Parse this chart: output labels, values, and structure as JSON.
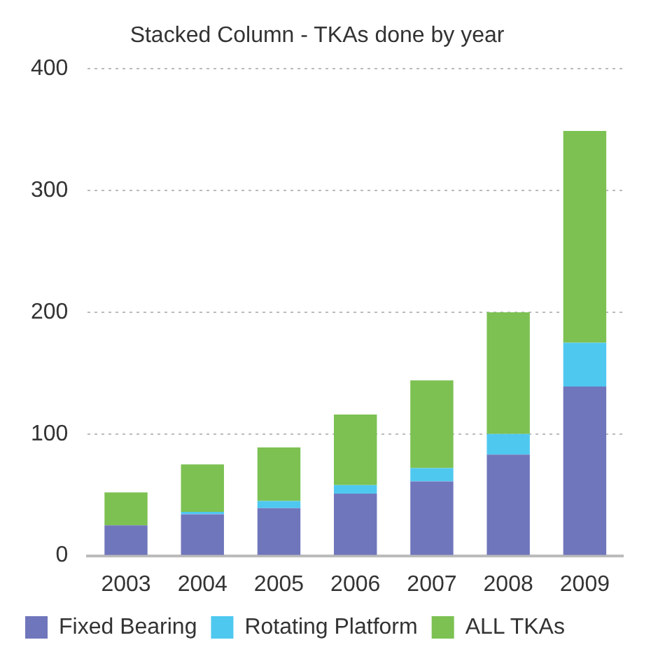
{
  "chart_data": {
    "type": "bar",
    "title": "Stacked Column - TKAs done by year",
    "categories": [
      "2003",
      "2004",
      "2005",
      "2006",
      "2007",
      "2008",
      "2009"
    ],
    "stacked": true,
    "series": [
      {
        "name": "Fixed Bearing",
        "color": "#7076bb",
        "values": [
          25,
          34,
          39,
          51,
          61,
          83,
          139
        ]
      },
      {
        "name": "Rotating Platform",
        "color": "#4fc8f0",
        "values": [
          0,
          2,
          6,
          7,
          11,
          17,
          36
        ]
      },
      {
        "name": "ALL TKAs",
        "color": "#7cc152",
        "values": [
          27,
          39,
          44,
          58,
          72,
          100,
          174
        ]
      }
    ],
    "ylim": [
      0,
      400
    ],
    "yticks": [
      0,
      100,
      200,
      300,
      400
    ],
    "grid": "y",
    "legend": "bottom"
  }
}
